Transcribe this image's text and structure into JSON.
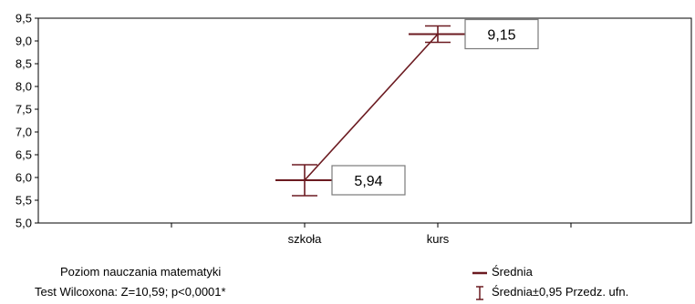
{
  "chart_data": {
    "type": "line",
    "categories": [
      "szkoła",
      "kurs"
    ],
    "series": [
      {
        "name": "Średnia",
        "values": [
          5.94,
          9.15
        ],
        "ci_lower": [
          5.6,
          8.97
        ],
        "ci_upper": [
          6.28,
          9.33
        ],
        "data_labels": [
          "5,94",
          "9,15"
        ]
      }
    ],
    "y_ticks": [
      "5,0",
      "5,5",
      "6,0",
      "6,5",
      "7,0",
      "7,5",
      "8,0",
      "8,5",
      "9,0",
      "9,5"
    ],
    "ylim": [
      5.0,
      9.5
    ],
    "grid": false,
    "legend_position": "bottom-right",
    "color": "#6b1a20",
    "xlabel_lines": [
      "Poziom nauczania matematyki",
      "Test Wilcoxona: Z=10,59; p<0,0001*"
    ],
    "legend": [
      {
        "label": "Średnia",
        "symbol": "line"
      },
      {
        "label": "Średnia±0,95 Przedz. ufn.",
        "symbol": "errorbar"
      }
    ]
  }
}
